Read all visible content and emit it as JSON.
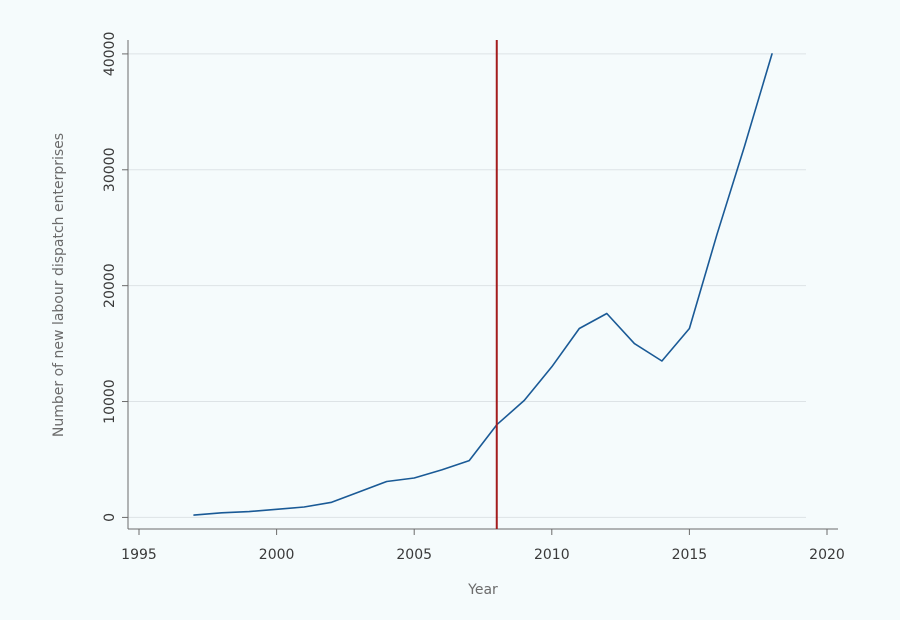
{
  "chart_data": {
    "type": "line",
    "title": "",
    "xlabel": "Year",
    "ylabel": "Number of new labour dispatch enterprises",
    "xlim": [
      1994.6,
      2020.4
    ],
    "ylim": [
      -1000,
      41200
    ],
    "x_ticks": [
      1995,
      2000,
      2005,
      2010,
      2015,
      2020
    ],
    "x_tick_labels": [
      "1995",
      "2000",
      "2005",
      "2010",
      "2015",
      "2020"
    ],
    "y_ticks": [
      0,
      10000,
      20000,
      30000,
      40000
    ],
    "y_tick_labels": [
      "0",
      "10000",
      "20000",
      "30000",
      "40000"
    ],
    "grid": "horizontal",
    "legend": "none",
    "series": [
      {
        "x": [
          1997,
          1998,
          1999,
          2000,
          2001,
          2002,
          2003,
          2004,
          2005,
          2006,
          2007,
          2008,
          2009,
          2010,
          2011,
          2012,
          2013,
          2014,
          2015,
          2016,
          2017,
          2018
        ],
        "values": [
          200,
          400,
          500,
          700,
          900,
          1300,
          2200,
          3100,
          3400,
          4100,
          4900,
          8000,
          10100,
          13000,
          16300,
          17600,
          15000,
          13500,
          16300,
          24400,
          32000,
          40000
        ],
        "color": "#1a5a96"
      }
    ],
    "vlines": [
      {
        "x": 2008,
        "color": "#a31d1d"
      }
    ]
  }
}
